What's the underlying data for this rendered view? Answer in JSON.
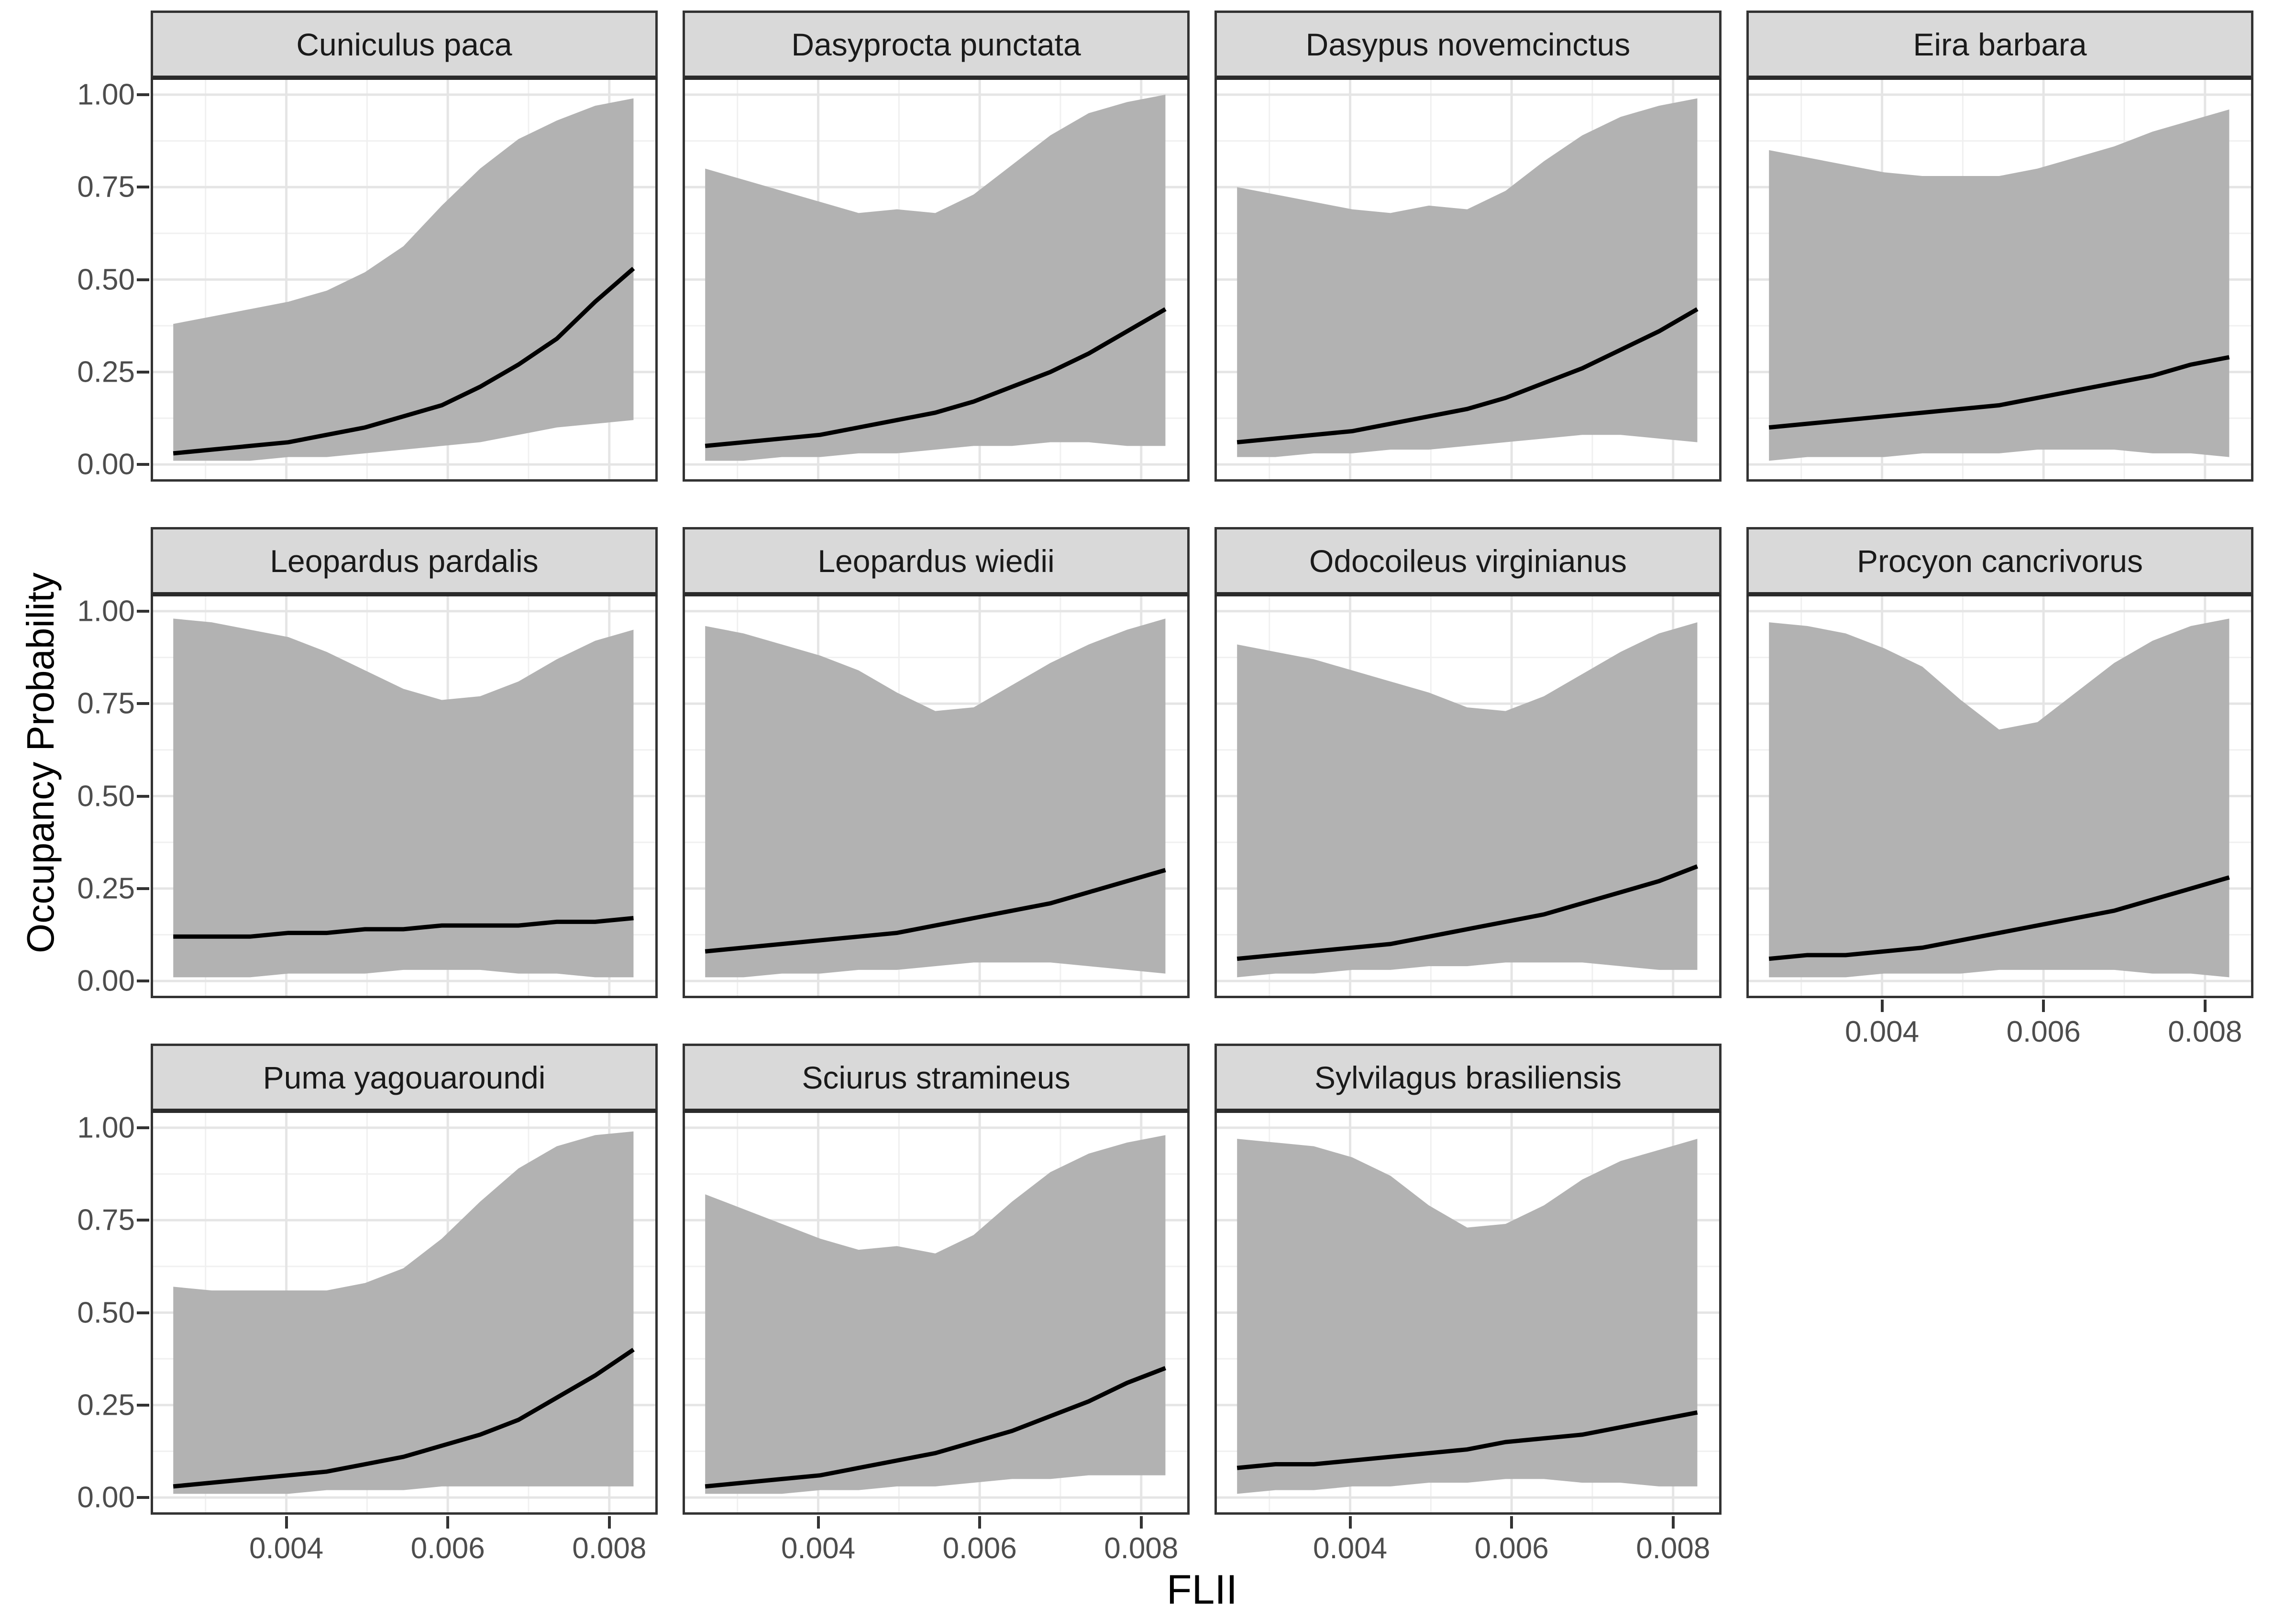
{
  "figure": {
    "y_axis_title": "Occupancy Probability",
    "x_axis_title": "FLII",
    "y_tick_labels": [
      "1.00",
      "0.75",
      "0.50",
      "0.25",
      "0.00"
    ],
    "x_tick_labels": [
      "0.004",
      "0.006",
      "0.008"
    ],
    "colors": {
      "ribbon": "#B2B2B2",
      "mean_line": "#000000",
      "strip_fill": "#D9D9D9",
      "panel_border": "#333333",
      "grid_major": "#E5E5E5",
      "grid_minor": "#F0F0F0",
      "tick_text": "#4D4D4D"
    }
  },
  "chart_data": {
    "type": "area",
    "title": "",
    "xlabel": "FLII",
    "ylabel": "Occupancy Probability",
    "legend": "none",
    "grid": "on",
    "x_range": [
      0.00235,
      0.00857
    ],
    "y_range": [
      -0.04,
      1.04
    ],
    "x_tick_values": [
      0.004,
      0.006,
      0.008
    ],
    "y_tick_values": [
      1.0,
      0.75,
      0.5,
      0.25,
      0.0
    ],
    "x_minor": [
      0.003,
      0.005,
      0.007
    ],
    "y_minor": [
      0.125,
      0.375,
      0.625,
      0.875
    ],
    "x": [
      0.0026,
      0.003075,
      0.00355,
      0.004025,
      0.0045,
      0.004975,
      0.00545,
      0.005925,
      0.0064,
      0.006875,
      0.00735,
      0.007825,
      0.0083
    ],
    "series_meaning": {
      "mean": "posterior mean occupancy",
      "lower": "ribbon lower bound",
      "upper": "ribbon upper bound"
    },
    "facets": [
      {
        "species": "Cuniculus paca",
        "mean": [
          0.03,
          0.04,
          0.05,
          0.06,
          0.08,
          0.1,
          0.13,
          0.16,
          0.21,
          0.27,
          0.34,
          0.44,
          0.53
        ],
        "lower": [
          0.01,
          0.01,
          0.01,
          0.02,
          0.02,
          0.03,
          0.04,
          0.05,
          0.06,
          0.08,
          0.1,
          0.11,
          0.12
        ],
        "upper": [
          0.38,
          0.4,
          0.42,
          0.44,
          0.47,
          0.52,
          0.59,
          0.7,
          0.8,
          0.88,
          0.93,
          0.97,
          0.99
        ]
      },
      {
        "species": "Dasyprocta punctata",
        "mean": [
          0.05,
          0.06,
          0.07,
          0.08,
          0.1,
          0.12,
          0.14,
          0.17,
          0.21,
          0.25,
          0.3,
          0.36,
          0.42
        ],
        "lower": [
          0.01,
          0.01,
          0.02,
          0.02,
          0.03,
          0.03,
          0.04,
          0.05,
          0.05,
          0.06,
          0.06,
          0.05,
          0.05
        ],
        "upper": [
          0.8,
          0.77,
          0.74,
          0.71,
          0.68,
          0.69,
          0.68,
          0.73,
          0.81,
          0.89,
          0.95,
          0.98,
          1.0
        ]
      },
      {
        "species": "Dasypus novemcinctus",
        "mean": [
          0.06,
          0.07,
          0.08,
          0.09,
          0.11,
          0.13,
          0.15,
          0.18,
          0.22,
          0.26,
          0.31,
          0.36,
          0.42
        ],
        "lower": [
          0.02,
          0.02,
          0.03,
          0.03,
          0.04,
          0.04,
          0.05,
          0.06,
          0.07,
          0.08,
          0.08,
          0.07,
          0.06
        ],
        "upper": [
          0.75,
          0.73,
          0.71,
          0.69,
          0.68,
          0.7,
          0.69,
          0.74,
          0.82,
          0.89,
          0.94,
          0.97,
          0.99
        ]
      },
      {
        "species": "Eira barbara",
        "mean": [
          0.1,
          0.11,
          0.12,
          0.13,
          0.14,
          0.15,
          0.16,
          0.18,
          0.2,
          0.22,
          0.24,
          0.27,
          0.29
        ],
        "lower": [
          0.01,
          0.02,
          0.02,
          0.02,
          0.03,
          0.03,
          0.03,
          0.04,
          0.04,
          0.04,
          0.03,
          0.03,
          0.02
        ],
        "upper": [
          0.85,
          0.83,
          0.81,
          0.79,
          0.78,
          0.78,
          0.78,
          0.8,
          0.83,
          0.86,
          0.9,
          0.93,
          0.96
        ]
      },
      {
        "species": "Leopardus pardalis",
        "mean": [
          0.12,
          0.12,
          0.12,
          0.13,
          0.13,
          0.14,
          0.14,
          0.15,
          0.15,
          0.15,
          0.16,
          0.16,
          0.17
        ],
        "lower": [
          0.01,
          0.01,
          0.01,
          0.02,
          0.02,
          0.02,
          0.03,
          0.03,
          0.03,
          0.02,
          0.02,
          0.01,
          0.01
        ],
        "upper": [
          0.98,
          0.97,
          0.95,
          0.93,
          0.89,
          0.84,
          0.79,
          0.76,
          0.77,
          0.81,
          0.87,
          0.92,
          0.95
        ]
      },
      {
        "species": "Leopardus wiedii",
        "mean": [
          0.08,
          0.09,
          0.1,
          0.11,
          0.12,
          0.13,
          0.15,
          0.17,
          0.19,
          0.21,
          0.24,
          0.27,
          0.3
        ],
        "lower": [
          0.01,
          0.01,
          0.02,
          0.02,
          0.03,
          0.03,
          0.04,
          0.05,
          0.05,
          0.05,
          0.04,
          0.03,
          0.02
        ],
        "upper": [
          0.96,
          0.94,
          0.91,
          0.88,
          0.84,
          0.78,
          0.73,
          0.74,
          0.8,
          0.86,
          0.91,
          0.95,
          0.98
        ]
      },
      {
        "species": "Odocoileus virginianus",
        "mean": [
          0.06,
          0.07,
          0.08,
          0.09,
          0.1,
          0.12,
          0.14,
          0.16,
          0.18,
          0.21,
          0.24,
          0.27,
          0.31
        ],
        "lower": [
          0.01,
          0.02,
          0.02,
          0.03,
          0.03,
          0.04,
          0.04,
          0.05,
          0.05,
          0.05,
          0.04,
          0.03,
          0.03
        ],
        "upper": [
          0.91,
          0.89,
          0.87,
          0.84,
          0.81,
          0.78,
          0.74,
          0.73,
          0.77,
          0.83,
          0.89,
          0.94,
          0.97
        ]
      },
      {
        "species": "Procyon cancrivorus",
        "mean": [
          0.06,
          0.07,
          0.07,
          0.08,
          0.09,
          0.11,
          0.13,
          0.15,
          0.17,
          0.19,
          0.22,
          0.25,
          0.28
        ],
        "lower": [
          0.01,
          0.01,
          0.01,
          0.02,
          0.02,
          0.02,
          0.03,
          0.03,
          0.03,
          0.03,
          0.02,
          0.02,
          0.01
        ],
        "upper": [
          0.97,
          0.96,
          0.94,
          0.9,
          0.85,
          0.76,
          0.68,
          0.7,
          0.78,
          0.86,
          0.92,
          0.96,
          0.98
        ]
      },
      {
        "species": "Puma yagouaroundi",
        "mean": [
          0.03,
          0.04,
          0.05,
          0.06,
          0.07,
          0.09,
          0.11,
          0.14,
          0.17,
          0.21,
          0.27,
          0.33,
          0.4
        ],
        "lower": [
          0.01,
          0.01,
          0.01,
          0.01,
          0.02,
          0.02,
          0.02,
          0.03,
          0.03,
          0.03,
          0.03,
          0.03,
          0.03
        ],
        "upper": [
          0.57,
          0.56,
          0.56,
          0.56,
          0.56,
          0.58,
          0.62,
          0.7,
          0.8,
          0.89,
          0.95,
          0.98,
          0.99
        ]
      },
      {
        "species": "Sciurus stramineus",
        "mean": [
          0.03,
          0.04,
          0.05,
          0.06,
          0.08,
          0.1,
          0.12,
          0.15,
          0.18,
          0.22,
          0.26,
          0.31,
          0.35
        ],
        "lower": [
          0.01,
          0.01,
          0.01,
          0.02,
          0.02,
          0.03,
          0.03,
          0.04,
          0.05,
          0.05,
          0.06,
          0.06,
          0.06
        ],
        "upper": [
          0.82,
          0.78,
          0.74,
          0.7,
          0.67,
          0.68,
          0.66,
          0.71,
          0.8,
          0.88,
          0.93,
          0.96,
          0.98
        ]
      },
      {
        "species": "Sylvilagus brasiliensis",
        "mean": [
          0.08,
          0.09,
          0.09,
          0.1,
          0.11,
          0.12,
          0.13,
          0.15,
          0.16,
          0.17,
          0.19,
          0.21,
          0.23
        ],
        "lower": [
          0.01,
          0.02,
          0.02,
          0.03,
          0.03,
          0.04,
          0.04,
          0.05,
          0.05,
          0.04,
          0.04,
          0.03,
          0.03
        ],
        "upper": [
          0.97,
          0.96,
          0.95,
          0.92,
          0.87,
          0.79,
          0.73,
          0.74,
          0.79,
          0.86,
          0.91,
          0.94,
          0.97
        ]
      }
    ]
  }
}
